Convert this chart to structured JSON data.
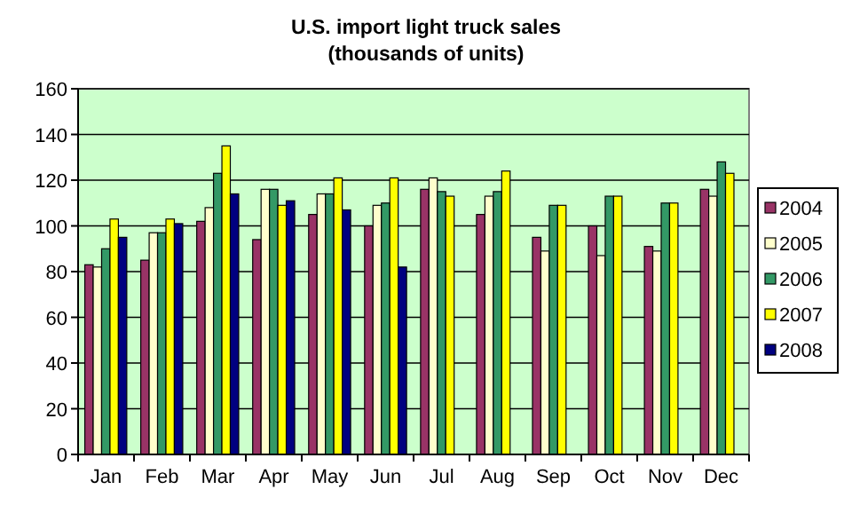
{
  "chart_data": {
    "type": "bar",
    "title": "U.S. import light truck sales",
    "subtitle": "(thousands of units)",
    "categories": [
      "Jan",
      "Feb",
      "Mar",
      "Apr",
      "May",
      "Jun",
      "Jul",
      "Aug",
      "Sep",
      "Oct",
      "Nov",
      "Dec"
    ],
    "series": [
      {
        "name": "2004",
        "color": "#993366",
        "values": [
          83,
          85,
          102,
          94,
          105,
          100,
          116,
          105,
          95,
          100,
          91,
          116
        ]
      },
      {
        "name": "2005",
        "color": "#ffffcc",
        "values": [
          82,
          97,
          108,
          116,
          114,
          109,
          121,
          113,
          89,
          87,
          89,
          113
        ]
      },
      {
        "name": "2006",
        "color": "#339966",
        "values": [
          90,
          97,
          123,
          116,
          114,
          110,
          115,
          115,
          109,
          113,
          110,
          128
        ]
      },
      {
        "name": "2007",
        "color": "#ffff00",
        "values": [
          103,
          103,
          135,
          109,
          121,
          121,
          113,
          124,
          109,
          113,
          110,
          123
        ]
      },
      {
        "name": "2008",
        "color": "#000080",
        "values": [
          95,
          101,
          114,
          111,
          107,
          82,
          null,
          null,
          null,
          null,
          null,
          null
        ]
      }
    ],
    "ylim": [
      0,
      160
    ],
    "yticks": [
      0,
      20,
      40,
      60,
      80,
      100,
      120,
      140,
      160
    ],
    "grid": "y",
    "legend": "right"
  }
}
